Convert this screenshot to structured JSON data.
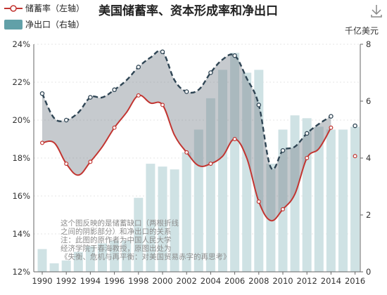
{
  "chart_data": {
    "type": "line",
    "title": "美国储蓄率、资本形成率和净出口",
    "legend": [
      {
        "label": "储蓄率（左轴）",
        "kind": "line",
        "color": "#c23531"
      },
      {
        "label": "净出口（右轴）",
        "kind": "bar",
        "color": "#61a0a8"
      }
    ],
    "right_axis_unit": "千亿美元",
    "y_left": {
      "min": 12,
      "max": 24,
      "ticks": [
        "12%",
        "14%",
        "16%",
        "18%",
        "20%",
        "22%",
        "24%"
      ]
    },
    "y_right": {
      "min": 0,
      "max": 8,
      "ticks": [
        "0",
        "2",
        "4",
        "6",
        "8"
      ]
    },
    "x_tick_labels": [
      "1990",
      "1992",
      "1994",
      "1996",
      "1998",
      "2000",
      "2002",
      "2004",
      "2006",
      "2008",
      "2010",
      "2012",
      "2014",
      "2016"
    ],
    "years": [
      1990,
      1991,
      1992,
      1993,
      1994,
      1995,
      1996,
      1997,
      1998,
      1999,
      2000,
      2001,
      2002,
      2003,
      2004,
      2005,
      2006,
      2007,
      2008,
      2009,
      2010,
      2011,
      2012,
      2013,
      2014,
      2015,
      2016
    ],
    "series": [
      {
        "name": "储蓄率（左轴）",
        "axis": "left",
        "values": [
          18.8,
          18.8,
          17.7,
          17.1,
          17.8,
          18.6,
          19.6,
          20.4,
          21.3,
          20.9,
          20.8,
          19.2,
          18.3,
          17.6,
          17.7,
          18.1,
          19.0,
          18.0,
          15.7,
          14.7,
          15.3,
          16.1,
          18.0,
          18.5,
          19.6,
          null,
          18.1
        ],
        "color": "#c23531"
      },
      {
        "name": "",
        "axis": "left",
        "values": [
          21.4,
          20.1,
          20.0,
          20.4,
          21.2,
          21.2,
          21.6,
          22.1,
          22.8,
          23.3,
          23.6,
          22.1,
          21.5,
          21.6,
          22.5,
          23.2,
          23.4,
          22.2,
          20.8,
          17.5,
          18.4,
          18.6,
          19.3,
          19.8,
          20.2,
          null,
          19.7
        ],
        "color": "#2f4554"
      },
      {
        "name": "净出口（右轴）",
        "axis": "right",
        "type": "bar",
        "values": [
          0.8,
          0.3,
          0.4,
          0.7,
          0.9,
          1.0,
          1.1,
          1.1,
          2.6,
          3.8,
          3.7,
          3.6,
          4.2,
          5.0,
          6.1,
          7.1,
          7.7,
          7.0,
          7.1,
          3.8,
          5.0,
          5.5,
          5.4,
          5.1,
          5.0,
          5.0,
          5.1
        ],
        "color": "#61a0a8"
      }
    ],
    "annotation": [
      "这个图反映的是储蓄缺口（两根折线",
      "之间的阴影部分）和净出口的关系",
      "注：此图的原作者为中国人民大学",
      "经济学院于春海教授，原图出处为",
      "《失衡、危机与再平衡：对美国贸易赤字的再思考》"
    ],
    "grid": true
  },
  "toolbar": {
    "download_icon": "download-icon"
  }
}
